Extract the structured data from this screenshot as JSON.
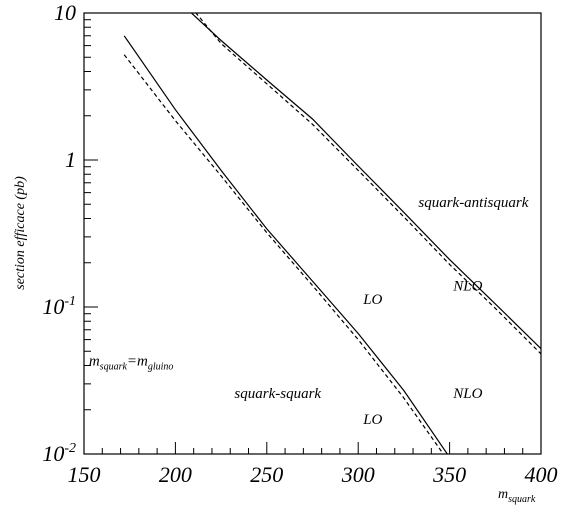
{
  "chart_data": {
    "type": "line",
    "xlabel": {
      "base": "m",
      "sub": "squark"
    },
    "ylabel": "section efficace (pb)",
    "xlim": [
      150,
      400
    ],
    "ylim": [
      0.01,
      10
    ],
    "yscale": "log",
    "xticks": [
      150,
      200,
      250,
      300,
      350,
      400
    ],
    "yticks": [
      {
        "value": 10,
        "base": "10",
        "exp": ""
      },
      {
        "value": 1,
        "base": "1",
        "exp": ""
      },
      {
        "value": 0.1,
        "base": "10",
        "exp": "-1"
      },
      {
        "value": 0.01,
        "base": "10",
        "exp": "-2"
      }
    ],
    "series": [
      {
        "process": "squark-antisquark",
        "order": "NLO",
        "style": "solid",
        "x": [
          208,
          225,
          250,
          275,
          300,
          325,
          350,
          375,
          400
        ],
        "y": [
          10.2,
          6.5,
          3.5,
          1.9,
          0.91,
          0.44,
          0.21,
          0.105,
          0.052
        ]
      },
      {
        "process": "squark-antisquark",
        "order": "LO",
        "style": "dashed",
        "x": [
          211,
          225,
          250,
          275,
          300,
          325,
          350,
          375,
          400
        ],
        "y": [
          10.1,
          6.2,
          3.3,
          1.75,
          0.85,
          0.41,
          0.195,
          0.098,
          0.048
        ]
      },
      {
        "process": "squark-squark",
        "order": "NLO",
        "style": "solid",
        "x": [
          172,
          200,
          225,
          250,
          275,
          300,
          325,
          350
        ],
        "y": [
          7.0,
          2.2,
          0.85,
          0.34,
          0.15,
          0.066,
          0.027,
          0.0095
        ]
      },
      {
        "process": "squark-squark",
        "order": "LO",
        "style": "dashed",
        "x": [
          172,
          200,
          225,
          250,
          275,
          300,
          325,
          350
        ],
        "y": [
          5.2,
          1.85,
          0.78,
          0.32,
          0.14,
          0.06,
          0.024,
          0.0087
        ]
      }
    ],
    "annotations": [
      {
        "id": "label-squark-antisquark",
        "text": "squark-antisquark",
        "x": 363,
        "y": 0.48
      },
      {
        "id": "label-nlo-upper",
        "text": "NLO",
        "x": 360,
        "y": 0.13
      },
      {
        "id": "label-lo-upper",
        "text": "LO",
        "x": 308,
        "y": 0.105
      },
      {
        "id": "label-squark-squark",
        "text": "squark-squark",
        "x": 256,
        "y": 0.024
      },
      {
        "id": "label-nlo-lower",
        "text": "NLO",
        "x": 360,
        "y": 0.024
      },
      {
        "id": "label-lo-lower",
        "text": "LO",
        "x": 308,
        "y": 0.016
      }
    ],
    "mass_condition": {
      "m1": "m",
      "s1": "squark",
      "eq": "=",
      "m2": "m",
      "s2": "gluino",
      "x": 180,
      "y": 0.04
    }
  }
}
